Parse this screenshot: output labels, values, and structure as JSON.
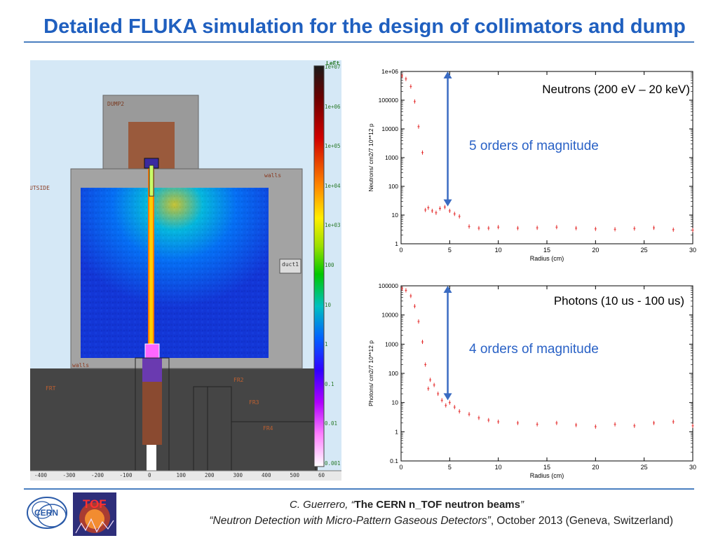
{
  "slide": {
    "title": "Detailed FLUKA simulation for the design of collimators and dump"
  },
  "simulation": {
    "region_labels": {
      "dump": "DUMP2",
      "walls_top": "walls",
      "outside": "UTSIDE",
      "duct": "duct1",
      "walls_bottom": "walls",
      "fr1": "FRT",
      "fr2": "FR2",
      "fr3": "FR3",
      "fr4": "FR4"
    },
    "colorbar": {
      "header": "LeFt",
      "tick_labels": [
        "1e+07",
        "1e+06",
        "1e+05",
        "1e+04",
        "1e+03",
        "100",
        "10",
        "1",
        "0.1",
        "0.01",
        "0.001"
      ]
    },
    "x_axis_ticks": [
      "-400",
      "-300",
      "-200",
      "-100",
      "0",
      "100",
      "200",
      "300",
      "400",
      "500",
      "60"
    ]
  },
  "plots": {
    "neutrons": {
      "legend": "Neutrons (200 eV – 20 keV)",
      "annotation": "5 orders of magnitude",
      "ylabel": "Neutrons/ cm2/7 10**12 p",
      "xlabel": "Radius (cm)",
      "ytick_labels": [
        "1e+06",
        "100000",
        "10000",
        "1000",
        "100",
        "10",
        "1"
      ],
      "xtick_labels": [
        "0",
        "5",
        "10",
        "15",
        "20",
        "25",
        "30"
      ]
    },
    "photons": {
      "legend": "Photons (10 us - 100 us)",
      "annotation": "4 orders of magnitude",
      "ylabel": "Photons/ cm2/7 10**12 p",
      "xlabel": "Radius (cm)",
      "ytick_labels": [
        "100000",
        "10000",
        "1000",
        "100",
        "10",
        "1",
        "0.1"
      ],
      "xtick_labels": [
        "0",
        "5",
        "10",
        "15",
        "20",
        "25",
        "30"
      ]
    }
  },
  "chart_data": [
    {
      "type": "scatter",
      "xlabel": "Radius (cm)",
      "ylabel": "Neutrons/ cm2/7 10**12 p",
      "xlim": [
        0,
        30
      ],
      "ylim": [
        1,
        1000000
      ],
      "yscale": "log",
      "series": [
        {
          "name": "Neutrons (200 eV – 20 keV)",
          "x": [
            0.1,
            0.5,
            1.0,
            1.4,
            1.8,
            2.2,
            2.5,
            2.8,
            3.2,
            3.6,
            4.0,
            4.5,
            5.0,
            5.5,
            6.0,
            7,
            8,
            9,
            10,
            12,
            14,
            16,
            18,
            20,
            22,
            24,
            26,
            28,
            30
          ],
          "y": [
            700000,
            550000,
            300000,
            90000,
            12000,
            1500,
            15,
            18,
            14,
            12,
            17,
            19,
            14,
            11,
            9,
            4,
            3.5,
            3.5,
            3.8,
            3.5,
            3.6,
            3.8,
            3.5,
            3.3,
            3.2,
            3.4,
            3.6,
            3.1,
            3.0
          ]
        }
      ]
    },
    {
      "type": "scatter",
      "xlabel": "Radius (cm)",
      "ylabel": "Photons/ cm2/7 10**12 p",
      "xlim": [
        0,
        30
      ],
      "ylim": [
        0.1,
        100000
      ],
      "yscale": "log",
      "series": [
        {
          "name": "Photons (10 us - 100 us)",
          "x": [
            0.1,
            0.5,
            1.0,
            1.4,
            1.8,
            2.2,
            2.5,
            2.8,
            3.0,
            3.4,
            3.8,
            4.2,
            4.6,
            5.0,
            5.5,
            6.0,
            7,
            8,
            9,
            10,
            12,
            14,
            16,
            18,
            20,
            22,
            24,
            26,
            28,
            30
          ],
          "y": [
            80000,
            70000,
            45000,
            20000,
            6000,
            1200,
            200,
            30,
            60,
            40,
            20,
            12,
            8,
            10,
            7,
            5,
            4,
            3,
            2.5,
            2.2,
            2.0,
            1.8,
            2.0,
            1.7,
            1.5,
            1.8,
            1.6,
            2.0,
            2.2,
            1.6
          ]
        }
      ]
    }
  ]
}
